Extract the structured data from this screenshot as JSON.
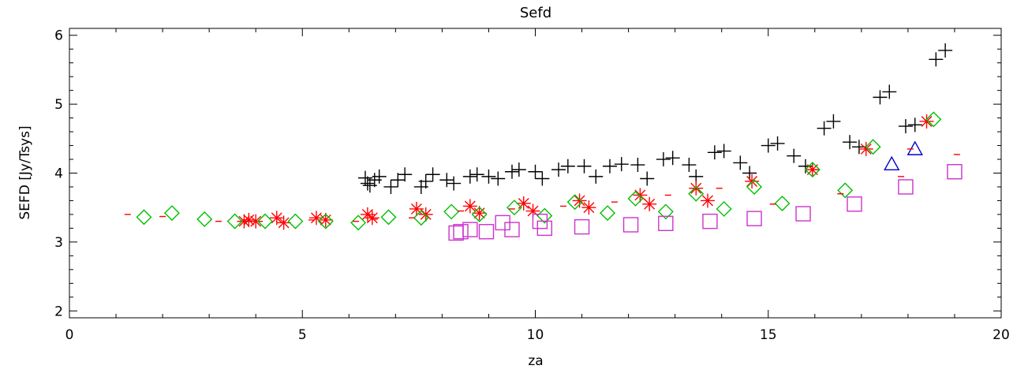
{
  "chart_data": {
    "type": "scatter",
    "title": "Sefd",
    "xlabel": "za",
    "ylabel": "SEFD [Jy/Tsys]",
    "xlim": [
      0,
      20
    ],
    "ylim": [
      1.9,
      6.1
    ],
    "x_ticks": [
      "0",
      "5",
      "10",
      "15",
      "20"
    ],
    "y_ticks": [
      "2",
      "3",
      "4",
      "5",
      "6"
    ],
    "grid": false,
    "legend": "none",
    "series": [
      {
        "marker": "plus",
        "color": "#000000",
        "points": [
          [
            6.35,
            3.93
          ],
          [
            6.4,
            3.85
          ],
          [
            6.45,
            3.82
          ],
          [
            6.55,
            3.9
          ],
          [
            6.65,
            3.95
          ],
          [
            6.9,
            3.8
          ],
          [
            7.05,
            3.9
          ],
          [
            7.2,
            3.98
          ],
          [
            7.55,
            3.8
          ],
          [
            7.65,
            3.88
          ],
          [
            7.8,
            3.98
          ],
          [
            8.1,
            3.9
          ],
          [
            8.25,
            3.85
          ],
          [
            8.6,
            3.95
          ],
          [
            8.75,
            3.98
          ],
          [
            9.0,
            3.95
          ],
          [
            9.2,
            3.92
          ],
          [
            9.5,
            4.02
          ],
          [
            9.65,
            4.05
          ],
          [
            10.0,
            4.02
          ],
          [
            10.15,
            3.92
          ],
          [
            10.5,
            4.05
          ],
          [
            10.7,
            4.1
          ],
          [
            11.05,
            4.1
          ],
          [
            11.3,
            3.95
          ],
          [
            11.6,
            4.1
          ],
          [
            11.85,
            4.13
          ],
          [
            12.2,
            4.12
          ],
          [
            12.4,
            3.92
          ],
          [
            12.75,
            4.2
          ],
          [
            12.95,
            4.22
          ],
          [
            13.3,
            4.12
          ],
          [
            13.45,
            3.95
          ],
          [
            13.85,
            4.3
          ],
          [
            14.05,
            4.32
          ],
          [
            14.4,
            4.15
          ],
          [
            14.6,
            4.0
          ],
          [
            15.0,
            4.4
          ],
          [
            15.2,
            4.43
          ],
          [
            15.55,
            4.25
          ],
          [
            15.8,
            4.1
          ],
          [
            16.2,
            4.65
          ],
          [
            16.4,
            4.75
          ],
          [
            16.75,
            4.45
          ],
          [
            16.95,
            4.38
          ],
          [
            17.4,
            5.1
          ],
          [
            17.6,
            5.18
          ],
          [
            17.95,
            4.68
          ],
          [
            18.15,
            4.7
          ],
          [
            18.6,
            5.65
          ],
          [
            18.8,
            5.78
          ]
        ]
      },
      {
        "marker": "asterisk",
        "color": "#ff0000",
        "points": [
          [
            3.75,
            3.3
          ],
          [
            3.85,
            3.32
          ],
          [
            4.0,
            3.3
          ],
          [
            4.45,
            3.35
          ],
          [
            4.6,
            3.28
          ],
          [
            5.3,
            3.35
          ],
          [
            5.5,
            3.32
          ],
          [
            6.4,
            3.4
          ],
          [
            6.5,
            3.35
          ],
          [
            7.45,
            3.48
          ],
          [
            7.65,
            3.4
          ],
          [
            8.6,
            3.52
          ],
          [
            8.8,
            3.42
          ],
          [
            9.75,
            3.56
          ],
          [
            9.95,
            3.45
          ],
          [
            10.95,
            3.6
          ],
          [
            11.15,
            3.5
          ],
          [
            12.25,
            3.68
          ],
          [
            12.45,
            3.55
          ],
          [
            13.45,
            3.78
          ],
          [
            13.7,
            3.6
          ],
          [
            14.65,
            3.88
          ],
          [
            15.95,
            4.05
          ],
          [
            17.1,
            4.35
          ],
          [
            18.4,
            4.75
          ]
        ]
      },
      {
        "marker": "diamond",
        "color": "#00c000",
        "points": [
          [
            1.6,
            3.36
          ],
          [
            2.2,
            3.42
          ],
          [
            2.9,
            3.33
          ],
          [
            3.55,
            3.3
          ],
          [
            4.2,
            3.3
          ],
          [
            4.85,
            3.3
          ],
          [
            5.5,
            3.3
          ],
          [
            6.2,
            3.28
          ],
          [
            6.85,
            3.36
          ],
          [
            7.55,
            3.35
          ],
          [
            8.2,
            3.44
          ],
          [
            8.8,
            3.4
          ],
          [
            9.55,
            3.5
          ],
          [
            10.2,
            3.38
          ],
          [
            10.85,
            3.58
          ],
          [
            11.55,
            3.42
          ],
          [
            12.15,
            3.63
          ],
          [
            12.8,
            3.44
          ],
          [
            13.45,
            3.7
          ],
          [
            14.05,
            3.48
          ],
          [
            14.7,
            3.8
          ],
          [
            15.3,
            3.56
          ],
          [
            15.95,
            4.05
          ],
          [
            16.65,
            3.75
          ],
          [
            17.25,
            4.38
          ],
          [
            18.55,
            4.78
          ]
        ]
      },
      {
        "marker": "square",
        "color": "#cc33cc",
        "points": [
          [
            8.3,
            3.13
          ],
          [
            8.4,
            3.15
          ],
          [
            8.6,
            3.18
          ],
          [
            8.95,
            3.15
          ],
          [
            9.3,
            3.28
          ],
          [
            9.5,
            3.18
          ],
          [
            10.1,
            3.3
          ],
          [
            10.2,
            3.2
          ],
          [
            11.0,
            3.22
          ],
          [
            12.05,
            3.25
          ],
          [
            12.8,
            3.27
          ],
          [
            13.75,
            3.3
          ],
          [
            14.7,
            3.34
          ],
          [
            15.75,
            3.41
          ],
          [
            16.85,
            3.55
          ],
          [
            17.95,
            3.8
          ],
          [
            19.0,
            4.02
          ]
        ]
      },
      {
        "marker": "triangle",
        "color": "#0000cc",
        "points": [
          [
            17.65,
            4.13
          ],
          [
            18.15,
            4.35
          ]
        ]
      },
      {
        "marker": "dash",
        "color": "#ff0000",
        "points": [
          [
            1.25,
            3.4
          ],
          [
            2.0,
            3.37
          ],
          [
            3.2,
            3.3
          ],
          [
            5.2,
            3.32
          ],
          [
            6.15,
            3.3
          ],
          [
            6.55,
            3.33
          ],
          [
            7.35,
            3.35
          ],
          [
            8.4,
            3.45
          ],
          [
            9.5,
            3.48
          ],
          [
            10.6,
            3.52
          ],
          [
            11.7,
            3.58
          ],
          [
            12.85,
            3.68
          ],
          [
            13.95,
            3.78
          ],
          [
            15.1,
            3.55
          ],
          [
            16.55,
            3.7
          ],
          [
            17.85,
            3.95
          ],
          [
            18.05,
            4.35
          ],
          [
            19.05,
            4.27
          ]
        ]
      }
    ]
  }
}
